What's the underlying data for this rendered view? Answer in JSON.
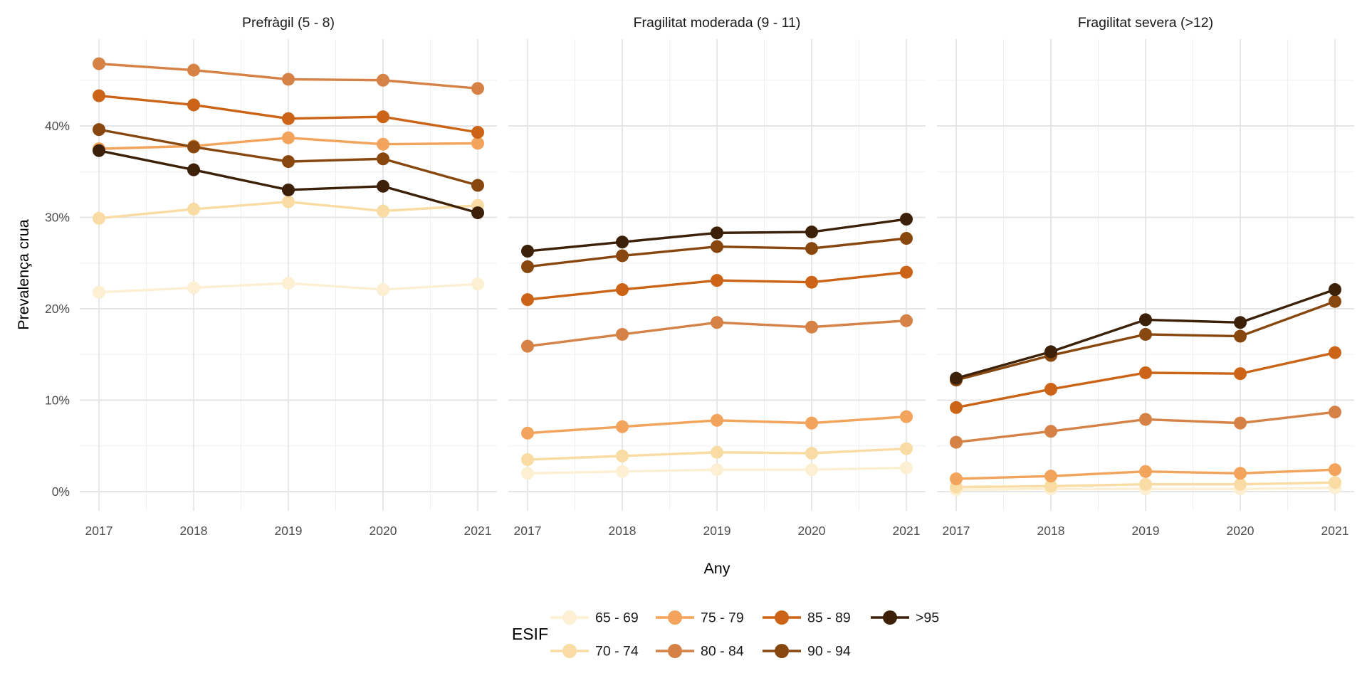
{
  "chart_data": {
    "type": "line",
    "x_label": "Any",
    "y_label": "Prevalença crua",
    "x": [
      2017,
      2018,
      2019,
      2020,
      2021
    ],
    "y_ticks": [
      "0%",
      "10%",
      "20%",
      "30%",
      "40%"
    ],
    "y_tick_values": [
      0,
      10,
      20,
      30,
      40
    ],
    "y_minor_values": [
      5,
      15,
      25,
      35,
      45
    ],
    "ylim": [
      -2.3,
      49.3
    ],
    "grid": "on",
    "background": "#ffffff",
    "grid_major_color": "#e3e3e3",
    "grid_minor_color": "#efefef",
    "tick_text_color": "#4d4d4d",
    "legend_title": "ESIF",
    "legend_position": "bottom",
    "groups": [
      {
        "name": "65 - 69",
        "color": "#fcefd2"
      },
      {
        "name": "70 - 74",
        "color": "#f9dca4"
      },
      {
        "name": "75 - 79",
        "color": "#f2a35c"
      },
      {
        "name": "80 - 84",
        "color": "#d68247"
      },
      {
        "name": "85 - 89",
        "color": "#cc6418"
      },
      {
        "name": "90 - 94",
        "color": "#87470f"
      },
      {
        "name": ">95",
        "color": "#3c2008"
      }
    ],
    "facets": [
      {
        "title": "Prefràgil (5 - 8)",
        "series": [
          {
            "name": "65 - 69",
            "values": [
              21.8,
              22.3,
              22.8,
              22.1,
              22.7
            ]
          },
          {
            "name": "70 - 74",
            "values": [
              29.9,
              30.9,
              31.7,
              30.7,
              31.3
            ]
          },
          {
            "name": "75 - 79",
            "values": [
              37.5,
              37.8,
              38.7,
              38.0,
              38.1
            ]
          },
          {
            "name": "80 - 84",
            "values": [
              46.8,
              46.1,
              45.1,
              45.0,
              44.1
            ]
          },
          {
            "name": "85 - 89",
            "values": [
              43.3,
              42.3,
              40.8,
              41.0,
              39.3
            ]
          },
          {
            "name": "90 - 94",
            "values": [
              39.6,
              37.7,
              36.1,
              36.4,
              33.5
            ]
          },
          {
            "name": ">95",
            "values": [
              37.3,
              35.2,
              33.0,
              33.4,
              30.5
            ]
          }
        ]
      },
      {
        "title": "Fragilitat moderada (9 - 11)",
        "series": [
          {
            "name": "65 - 69",
            "values": [
              2.0,
              2.2,
              2.4,
              2.4,
              2.6
            ]
          },
          {
            "name": "70 - 74",
            "values": [
              3.5,
              3.9,
              4.3,
              4.2,
              4.7
            ]
          },
          {
            "name": "75 - 79",
            "values": [
              6.4,
              7.1,
              7.8,
              7.5,
              8.2
            ]
          },
          {
            "name": "80 - 84",
            "values": [
              15.9,
              17.2,
              18.5,
              18.0,
              18.7
            ]
          },
          {
            "name": "85 - 89",
            "values": [
              21.0,
              22.1,
              23.1,
              22.9,
              24.0
            ]
          },
          {
            "name": "90 - 94",
            "values": [
              24.6,
              25.8,
              26.8,
              26.6,
              27.7
            ]
          },
          {
            "name": ">95",
            "values": [
              26.3,
              27.3,
              28.3,
              28.4,
              29.8
            ]
          }
        ]
      },
      {
        "title": "Fragilitat severa (>12)",
        "series": [
          {
            "name": "65 - 69",
            "values": [
              0.2,
              0.3,
              0.3,
              0.3,
              0.4
            ]
          },
          {
            "name": "70 - 74",
            "values": [
              0.5,
              0.6,
              0.8,
              0.8,
              1.0
            ]
          },
          {
            "name": "75 - 79",
            "values": [
              1.4,
              1.7,
              2.2,
              2.0,
              2.4
            ]
          },
          {
            "name": "80 - 84",
            "values": [
              5.4,
              6.6,
              7.9,
              7.5,
              8.7
            ]
          },
          {
            "name": "85 - 89",
            "values": [
              9.2,
              11.2,
              13.0,
              12.9,
              15.2
            ]
          },
          {
            "name": "90 - 94",
            "values": [
              12.2,
              14.9,
              17.2,
              17.0,
              20.8
            ]
          },
          {
            "name": ">95",
            "values": [
              12.4,
              15.3,
              18.8,
              18.5,
              22.1
            ]
          }
        ]
      }
    ]
  }
}
